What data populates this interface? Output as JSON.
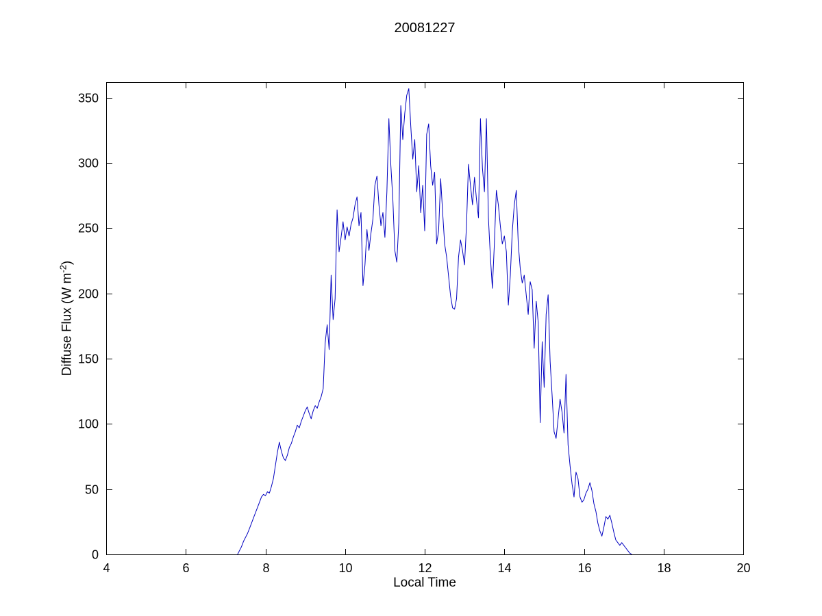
{
  "chart_data": {
    "type": "line",
    "title": "20081227",
    "xlabel": "Local Time",
    "ylabel": "Diffuse Flux (W m-2)",
    "ylabel_parts": {
      "prefix": "Diffuse Flux (W m",
      "superscript": "-2",
      "suffix": ")"
    },
    "xlim": [
      4,
      20
    ],
    "ylim": [
      0,
      362
    ],
    "xticks": [
      4,
      6,
      8,
      10,
      12,
      14,
      16,
      18,
      20
    ],
    "yticks": [
      0,
      50,
      100,
      150,
      200,
      250,
      300,
      350
    ],
    "grid": "off",
    "legend": "none",
    "line_color": "#0000c0",
    "axis_color": "#000000",
    "series": [
      {
        "name": "diffuse-flux",
        "points": [
          [
            7.3,
            0
          ],
          [
            7.35,
            3
          ],
          [
            7.4,
            6
          ],
          [
            7.45,
            10
          ],
          [
            7.5,
            13
          ],
          [
            7.55,
            16
          ],
          [
            7.6,
            20
          ],
          [
            7.65,
            24
          ],
          [
            7.7,
            28
          ],
          [
            7.75,
            32
          ],
          [
            7.8,
            36
          ],
          [
            7.85,
            40
          ],
          [
            7.9,
            44
          ],
          [
            7.95,
            46
          ],
          [
            8.0,
            45
          ],
          [
            8.05,
            48
          ],
          [
            8.1,
            47
          ],
          [
            8.15,
            52
          ],
          [
            8.2,
            58
          ],
          [
            8.25,
            68
          ],
          [
            8.3,
            78
          ],
          [
            8.35,
            86
          ],
          [
            8.4,
            79
          ],
          [
            8.45,
            74
          ],
          [
            8.5,
            72
          ],
          [
            8.55,
            76
          ],
          [
            8.6,
            82
          ],
          [
            8.65,
            85
          ],
          [
            8.7,
            90
          ],
          [
            8.75,
            94
          ],
          [
            8.8,
            99
          ],
          [
            8.85,
            97
          ],
          [
            8.9,
            102
          ],
          [
            8.95,
            106
          ],
          [
            9.0,
            110
          ],
          [
            9.05,
            113
          ],
          [
            9.1,
            108
          ],
          [
            9.15,
            104
          ],
          [
            9.2,
            110
          ],
          [
            9.25,
            114
          ],
          [
            9.3,
            112
          ],
          [
            9.35,
            117
          ],
          [
            9.4,
            121
          ],
          [
            9.45,
            127
          ],
          [
            9.5,
            162
          ],
          [
            9.55,
            176
          ],
          [
            9.6,
            157
          ],
          [
            9.65,
            214
          ],
          [
            9.7,
            180
          ],
          [
            9.75,
            196
          ],
          [
            9.8,
            264
          ],
          [
            9.85,
            232
          ],
          [
            9.9,
            243
          ],
          [
            9.95,
            255
          ],
          [
            10.0,
            241
          ],
          [
            10.05,
            251
          ],
          [
            10.1,
            244
          ],
          [
            10.15,
            253
          ],
          [
            10.2,
            258
          ],
          [
            10.25,
            268
          ],
          [
            10.3,
            274
          ],
          [
            10.35,
            252
          ],
          [
            10.4,
            262
          ],
          [
            10.45,
            206
          ],
          [
            10.5,
            222
          ],
          [
            10.55,
            249
          ],
          [
            10.6,
            233
          ],
          [
            10.65,
            246
          ],
          [
            10.7,
            257
          ],
          [
            10.75,
            283
          ],
          [
            10.8,
            290
          ],
          [
            10.85,
            268
          ],
          [
            10.9,
            252
          ],
          [
            10.95,
            262
          ],
          [
            11.0,
            243
          ],
          [
            11.05,
            278
          ],
          [
            11.1,
            334
          ],
          [
            11.15,
            298
          ],
          [
            11.2,
            272
          ],
          [
            11.25,
            233
          ],
          [
            11.3,
            224
          ],
          [
            11.35,
            254
          ],
          [
            11.4,
            344
          ],
          [
            11.45,
            318
          ],
          [
            11.5,
            338
          ],
          [
            11.55,
            352
          ],
          [
            11.6,
            357
          ],
          [
            11.65,
            328
          ],
          [
            11.7,
            303
          ],
          [
            11.75,
            318
          ],
          [
            11.8,
            278
          ],
          [
            11.85,
            298
          ],
          [
            11.9,
            262
          ],
          [
            11.95,
            283
          ],
          [
            12.0,
            248
          ],
          [
            12.05,
            322
          ],
          [
            12.1,
            330
          ],
          [
            12.15,
            298
          ],
          [
            12.2,
            283
          ],
          [
            12.25,
            293
          ],
          [
            12.3,
            238
          ],
          [
            12.35,
            248
          ],
          [
            12.4,
            288
          ],
          [
            12.45,
            262
          ],
          [
            12.5,
            238
          ],
          [
            12.55,
            228
          ],
          [
            12.6,
            213
          ],
          [
            12.65,
            198
          ],
          [
            12.7,
            189
          ],
          [
            12.75,
            188
          ],
          [
            12.8,
            196
          ],
          [
            12.85,
            228
          ],
          [
            12.9,
            241
          ],
          [
            12.95,
            233
          ],
          [
            13.0,
            222
          ],
          [
            13.05,
            252
          ],
          [
            13.1,
            299
          ],
          [
            13.15,
            283
          ],
          [
            13.2,
            268
          ],
          [
            13.25,
            289
          ],
          [
            13.3,
            272
          ],
          [
            13.35,
            258
          ],
          [
            13.4,
            334
          ],
          [
            13.45,
            296
          ],
          [
            13.5,
            278
          ],
          [
            13.55,
            334
          ],
          [
            13.6,
            258
          ],
          [
            13.65,
            228
          ],
          [
            13.7,
            204
          ],
          [
            13.75,
            238
          ],
          [
            13.8,
            279
          ],
          [
            13.85,
            268
          ],
          [
            13.9,
            252
          ],
          [
            13.95,
            238
          ],
          [
            14.0,
            244
          ],
          [
            14.05,
            232
          ],
          [
            14.1,
            191
          ],
          [
            14.15,
            214
          ],
          [
            14.2,
            248
          ],
          [
            14.25,
            268
          ],
          [
            14.3,
            279
          ],
          [
            14.35,
            238
          ],
          [
            14.4,
            219
          ],
          [
            14.45,
            208
          ],
          [
            14.5,
            214
          ],
          [
            14.55,
            199
          ],
          [
            14.6,
            184
          ],
          [
            14.65,
            209
          ],
          [
            14.7,
            203
          ],
          [
            14.75,
            158
          ],
          [
            14.8,
            194
          ],
          [
            14.85,
            178
          ],
          [
            14.9,
            101
          ],
          [
            14.95,
            163
          ],
          [
            15.0,
            128
          ],
          [
            15.05,
            184
          ],
          [
            15.1,
            199
          ],
          [
            15.15,
            148
          ],
          [
            15.2,
            122
          ],
          [
            15.25,
            94
          ],
          [
            15.3,
            89
          ],
          [
            15.35,
            104
          ],
          [
            15.4,
            119
          ],
          [
            15.45,
            109
          ],
          [
            15.5,
            93
          ],
          [
            15.55,
            138
          ],
          [
            15.6,
            84
          ],
          [
            15.65,
            68
          ],
          [
            15.7,
            54
          ],
          [
            15.75,
            44
          ],
          [
            15.8,
            63
          ],
          [
            15.85,
            58
          ],
          [
            15.9,
            44
          ],
          [
            15.95,
            40
          ],
          [
            16.0,
            42
          ],
          [
            16.05,
            47
          ],
          [
            16.1,
            50
          ],
          [
            16.15,
            55
          ],
          [
            16.2,
            49
          ],
          [
            16.25,
            39
          ],
          [
            16.3,
            33
          ],
          [
            16.35,
            24
          ],
          [
            16.4,
            18
          ],
          [
            16.45,
            14
          ],
          [
            16.5,
            21
          ],
          [
            16.55,
            29
          ],
          [
            16.6,
            27
          ],
          [
            16.65,
            30
          ],
          [
            16.7,
            24
          ],
          [
            16.75,
            17
          ],
          [
            16.8,
            11
          ],
          [
            16.85,
            9
          ],
          [
            16.9,
            7
          ],
          [
            16.95,
            9
          ],
          [
            17.0,
            7
          ],
          [
            17.05,
            5
          ],
          [
            17.1,
            3
          ],
          [
            17.15,
            1
          ],
          [
            17.2,
            0
          ]
        ]
      }
    ]
  }
}
